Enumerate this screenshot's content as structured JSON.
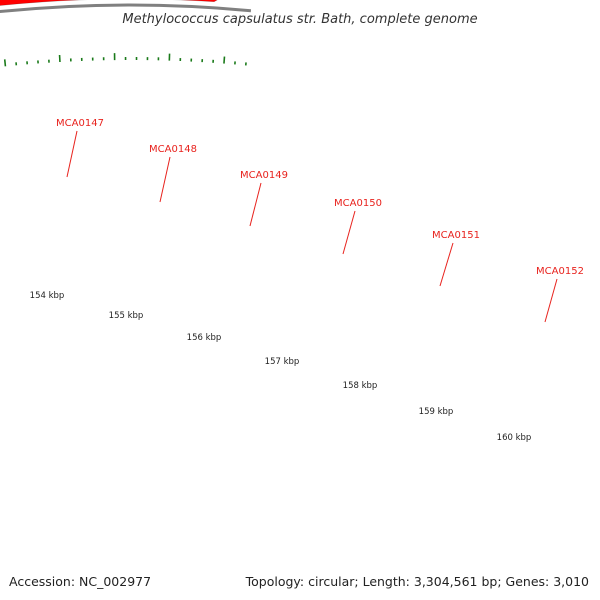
{
  "title": "Methylococcus capsulatus str. Bath, complete genome",
  "footer": {
    "accession": "Accession: NC_002977",
    "summary": "Topology: circular; Length: 3,304,561 bp; Genes: 3,010"
  },
  "colors": {
    "forward_other": "#6b8e23",
    "forward_selected": "#efe6a0",
    "reverse": "#ff0000",
    "backbone": "#808080",
    "tick": "#1a7a1a",
    "label": "#e8231e"
  },
  "scale_labels": [
    "154 kbp",
    "155 kbp",
    "156 kbp",
    "157 kbp",
    "158 kbp",
    "159 kbp",
    "160 kbp"
  ],
  "genes": [
    {
      "name": "MCA0147",
      "strand": "+",
      "kind": "green",
      "segment": [
        0.0,
        0.19
      ]
    },
    {
      "name": "MCA0148",
      "strand": "+",
      "kind": "green",
      "segment": [
        0.198,
        0.31
      ]
    },
    {
      "name": "MCA0149",
      "strand": "+",
      "kind": "green",
      "segment": [
        0.31,
        0.5
      ]
    },
    {
      "name": "MCA0150",
      "strand": "+",
      "kind": "selected",
      "segment": [
        0.5,
        0.62
      ]
    },
    {
      "name": "MCA0151",
      "strand": "-",
      "kind": "red",
      "segment": [
        0.61,
        0.805
      ]
    },
    {
      "name": "MCA0152",
      "strand": "-",
      "kind": "red",
      "segment": [
        0.805,
        0.96
      ]
    }
  ],
  "reverse_genes": [
    {
      "segment": [
        0.0,
        0.185
      ]
    },
    {
      "segment": [
        0.19,
        0.3
      ]
    },
    {
      "segment": [
        0.3,
        0.49
      ]
    },
    {
      "segment": [
        0.49,
        0.605
      ]
    }
  ]
}
